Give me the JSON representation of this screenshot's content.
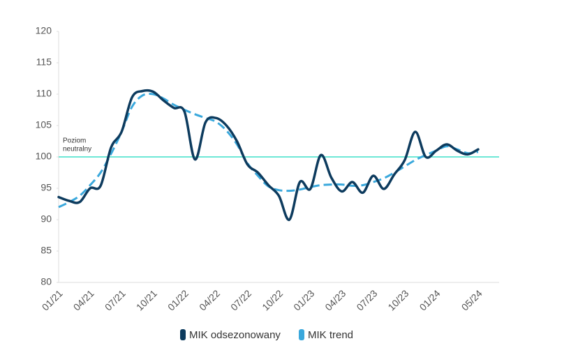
{
  "chart_data": {
    "type": "line",
    "categories": [
      "01/21",
      null,
      null,
      "04/21",
      null,
      null,
      "07/21",
      null,
      null,
      "10/21",
      null,
      null,
      "01/22",
      null,
      null,
      "04/22",
      null,
      null,
      "07/22",
      null,
      null,
      "10/22",
      null,
      null,
      "01/23",
      null,
      null,
      "04/23",
      null,
      null,
      "07/23",
      null,
      null,
      "10/23",
      null,
      null,
      "01/24",
      null,
      null,
      null,
      "05/24"
    ],
    "series": [
      {
        "name": "MIK odsezonowany",
        "color": "#0d3b5e",
        "dashed": false,
        "values": [
          93.6,
          93.0,
          92.8,
          95.0,
          95.4,
          101.5,
          104.0,
          109.5,
          110.5,
          110.4,
          109.0,
          107.8,
          107.2,
          99.6,
          105.5,
          106.2,
          105.0,
          102.5,
          98.8,
          97.5,
          95.5,
          93.8,
          90.0,
          96.0,
          94.9,
          100.3,
          96.7,
          94.5,
          96.0,
          94.3,
          97.0,
          94.9,
          97.2,
          99.5,
          104.0,
          100.0,
          101.0,
          102.0,
          101.0,
          100.4,
          101.2
        ]
      },
      {
        "name": "MIK trend",
        "color": "#3aa8dc",
        "dashed": true,
        "values": [
          92.0,
          92.8,
          93.8,
          95.5,
          97.5,
          100.5,
          104.0,
          108.0,
          109.8,
          110.0,
          109.3,
          108.3,
          107.5,
          106.8,
          106.2,
          105.6,
          104.2,
          102.0,
          99.0,
          97.0,
          95.3,
          94.7,
          94.6,
          94.8,
          95.2,
          95.5,
          95.6,
          95.6,
          95.4,
          95.5,
          96.0,
          96.6,
          97.5,
          98.5,
          99.5,
          100.3,
          101.0,
          101.7,
          101.2,
          100.6,
          100.8
        ]
      }
    ],
    "reference_line": {
      "value": 100,
      "label": [
        "Poziom",
        "neutralny"
      ],
      "color": "#3de0c8"
    },
    "ylim": [
      80,
      120
    ],
    "yticks": [
      80,
      85,
      90,
      95,
      100,
      105,
      110,
      115,
      120
    ],
    "grid": false
  }
}
